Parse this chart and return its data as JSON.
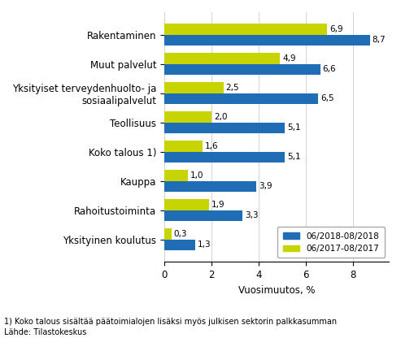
{
  "categories": [
    "Rakentaminen",
    "Muut palvelut",
    "Yksityiset terveydenhuolto- ja\nsosiaalipalvelut",
    "Teollisuus",
    "Koko talous 1)",
    "Kauppa",
    "Rahoitustoiminta",
    "Yksityinen koulutus"
  ],
  "values_2018": [
    8.7,
    6.6,
    6.5,
    5.1,
    5.1,
    3.9,
    3.3,
    1.3
  ],
  "values_2017": [
    6.9,
    4.9,
    2.5,
    2.0,
    1.6,
    1.0,
    1.9,
    0.3
  ],
  "color_2018": "#1f6eb5",
  "color_2017": "#c8d400",
  "xlabel": "Vuosimuutos, %",
  "legend_2018": "06/2018-08/2018",
  "legend_2017": "06/2017-08/2017",
  "xlim": [
    0,
    9.5
  ],
  "xticks": [
    0,
    2,
    4,
    6,
    8
  ],
  "footnote1": "1) Koko talous sisältää päätoimialojen lisäksi myös julkisen sektorin palkkasumman",
  "footnote2": "Lähde: Tilastokeskus",
  "bar_height": 0.38,
  "value_fontsize": 7.5,
  "label_fontsize": 8.5,
  "tick_fontsize": 8.5
}
